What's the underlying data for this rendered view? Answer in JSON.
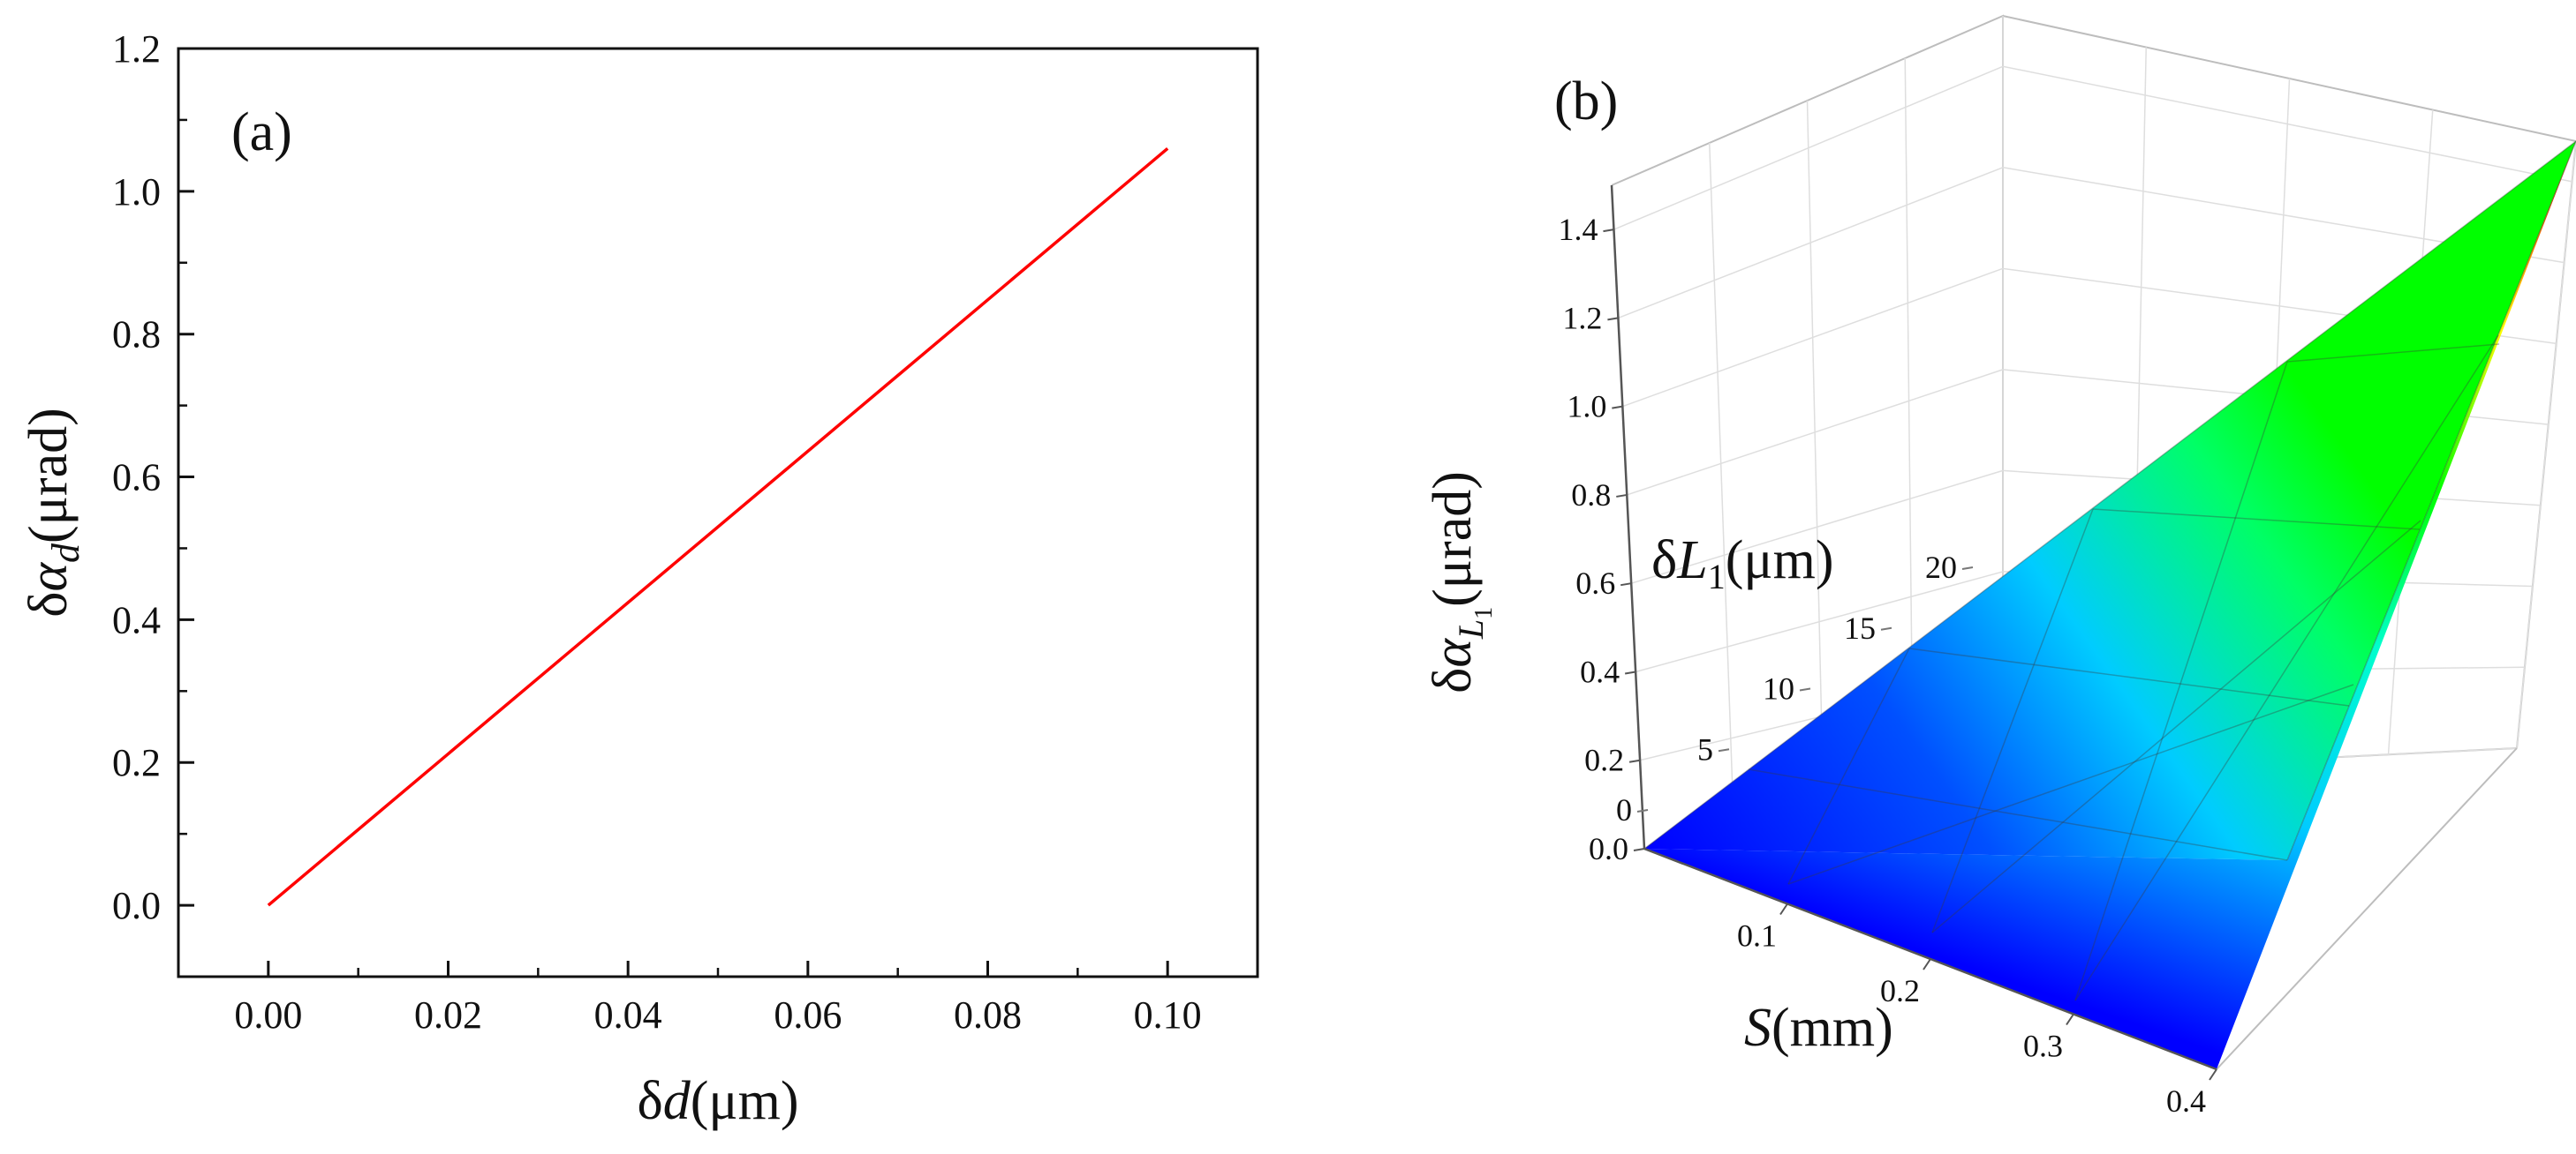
{
  "chart_data": [
    {
      "panel": "(a)",
      "type": "line",
      "title": "",
      "xlabel": {
        "prefix": "δ",
        "var": "d",
        "unit": "(μm)"
      },
      "ylabel": {
        "prefix": "δ",
        "var": "α",
        "sub": "d",
        "unit": "(μrad)"
      },
      "xlim": [
        -0.01,
        0.11
      ],
      "ylim": [
        -0.1,
        1.2
      ],
      "xticks": [
        0.0,
        0.02,
        0.04,
        0.06,
        0.08,
        0.1
      ],
      "yticks": [
        0.0,
        0.2,
        0.4,
        0.6,
        0.8,
        1.0,
        1.2
      ],
      "xtick_labels": [
        "0.00",
        "0.02",
        "0.04",
        "0.06",
        "0.08",
        "0.10"
      ],
      "ytick_labels": [
        "0.0",
        "0.2",
        "0.4",
        "0.6",
        "0.8",
        "1.0",
        "1.2"
      ],
      "series": [
        {
          "name": "δα_d",
          "color": "#ff0000",
          "x": [
            0.0,
            0.1
          ],
          "y": [
            0.0,
            1.06
          ]
        }
      ]
    },
    {
      "panel": "(b)",
      "type": "surface",
      "title": "",
      "xlabel": {
        "var": "S",
        "unit": "(mm)"
      },
      "ylabel": {
        "prefix": "δ",
        "var": "L",
        "sub": "1",
        "unit": "(μm)"
      },
      "zlabel": {
        "prefix": "δ",
        "var": "α",
        "sub": "L",
        "subsub": "1",
        "unit": "(μrad)"
      },
      "xlim": [
        0,
        0.4
      ],
      "ylim": [
        0,
        20
      ],
      "zlim": [
        0,
        1.5
      ],
      "xticks": [
        0.1,
        0.2,
        0.3,
        0.4
      ],
      "yticks": [
        0,
        5,
        10,
        15,
        20
      ],
      "zticks": [
        0.0,
        0.2,
        0.4,
        0.6,
        0.8,
        1.0,
        1.2,
        1.4
      ],
      "xtick_labels": [
        "0.1",
        "0.2",
        "0.3",
        "0.4"
      ],
      "ytick_labels": [
        "0",
        "5",
        "10",
        "15",
        "20"
      ],
      "ztick_labels": [
        "0.0",
        "0.2",
        "0.4",
        "0.6",
        "0.8",
        "1.0",
        "1.2",
        "1.4"
      ],
      "surface": {
        "formula": "z = 1.5 * (S / 0.4) * (dL1 / 20)",
        "max_value": 1.5
      },
      "colormap": [
        "#0000ff",
        "#00c0ff",
        "#00ffff",
        "#00ff00",
        "#ffff00",
        "#ff0000"
      ]
    }
  ]
}
